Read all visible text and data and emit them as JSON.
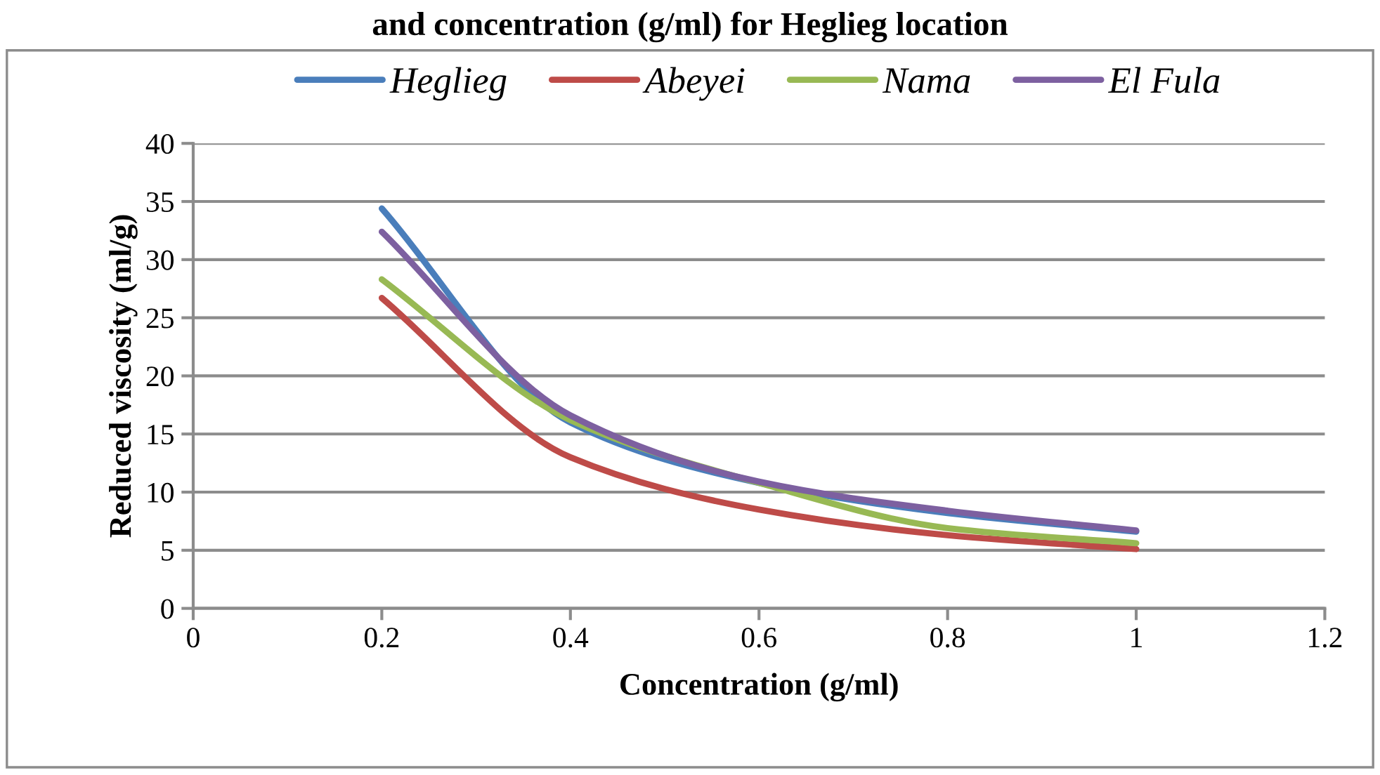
{
  "chart_data": {
    "type": "line",
    "annotations": [
      "and concentration (g/ml) for Heglieg location"
    ],
    "xlabel": "Concentration (g/ml)",
    "ylabel": "Reduced viscosity (ml/g)",
    "x": [
      0.2,
      0.4,
      0.6,
      0.8,
      1.0
    ],
    "series": [
      {
        "name": "Heglieg",
        "color": "#4a7ebb",
        "values": [
          34.4,
          16.0,
          10.8,
          8.2,
          6.6
        ]
      },
      {
        "name": "Abeyei",
        "color": "#be4b48",
        "values": [
          26.7,
          13.0,
          8.5,
          6.3,
          5.1
        ]
      },
      {
        "name": "Nama",
        "color": "#98b954",
        "values": [
          28.3,
          16.2,
          10.8,
          6.9,
          5.6
        ]
      },
      {
        "name": "El Fula",
        "color": "#7d60a0",
        "values": [
          32.4,
          16.6,
          10.9,
          8.4,
          6.7
        ]
      }
    ],
    "xlim": [
      0,
      1.2
    ],
    "xticks": [
      0,
      0.2,
      0.4,
      0.6,
      0.8,
      1,
      1.2
    ],
    "ylim": [
      0,
      40
    ],
    "yticks": [
      0,
      5,
      10,
      15,
      20,
      25,
      30,
      35,
      40
    ],
    "grid": "y",
    "legend": "top",
    "marker": "none",
    "line_style": "solid"
  }
}
